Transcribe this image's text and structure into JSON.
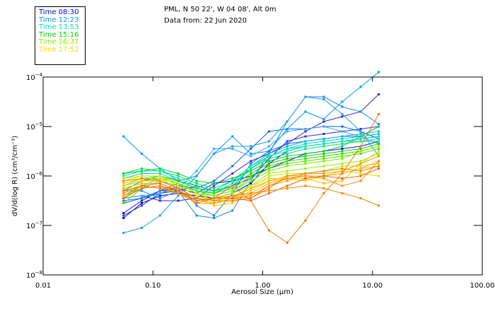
{
  "header": {
    "location": "PML, N 50 22', W 04 08', Alt 0m",
    "date": "Data from: 22 Jun 2020"
  },
  "legend": [
    {
      "label": "Time 08:30",
      "color": "#0000dd"
    },
    {
      "label": "Time 12:23",
      "color": "#0099ee"
    },
    {
      "label": "Time 13:53",
      "color": "#00ddbb"
    },
    {
      "label": "Time 15:16",
      "color": "#00cc00"
    },
    {
      "label": "Time 16:37",
      "color": "#88ee00"
    },
    {
      "label": "Time 17:52",
      "color": "#eedd00"
    }
  ],
  "chart_data": {
    "type": "line",
    "xlabel": "Aerosol Size (µm)",
    "ylabel": "dV/d(log R) (cm³/cm⁻³)",
    "xscale": "log",
    "yscale": "log",
    "xlim": [
      0.01,
      100
    ],
    "ylim": [
      1e-08,
      0.0001
    ],
    "x_ticks": [
      "0.01",
      "0.10",
      "1.00",
      "10.00",
      "100.00"
    ],
    "y_ticks": [
      {
        "base": "10",
        "exp": "-4"
      },
      {
        "base": "10",
        "exp": "-5"
      },
      {
        "base": "10",
        "exp": "-6"
      },
      {
        "base": "10",
        "exp": "-7"
      },
      {
        "base": "10",
        "exp": "-8"
      }
    ],
    "x": [
      0.054,
      0.079,
      0.116,
      0.17,
      0.25,
      0.36,
      0.53,
      0.78,
      1.14,
      1.67,
      2.45,
      3.6,
      5.3,
      7.8,
      11.4
    ],
    "series_log10": [
      {
        "color": "#0000cc",
        "values": [
          -6.85,
          -6.55,
          -6.4,
          -6.35,
          -6.4,
          -6.45,
          -6.35,
          -6.15,
          -5.75,
          -5.5,
          -5.4,
          -5.35,
          -5.3,
          -5.25,
          -5.2
        ]
      },
      {
        "color": "#1010dd",
        "values": [
          -6.75,
          -6.5,
          -6.3,
          -6.25,
          -6.35,
          -6.15,
          -6.1,
          -6.0,
          -5.85,
          -5.7,
          -5.55,
          -5.5,
          -5.45,
          -5.4,
          -5.3
        ]
      },
      {
        "color": "#2a2aee",
        "values": [
          -6.8,
          -6.6,
          -6.35,
          -6.3,
          -6.2,
          -6.3,
          -6.2,
          -6.05,
          -5.65,
          -5.3,
          -5.2,
          -5.15,
          -5.1,
          -5.05,
          -5.0
        ]
      },
      {
        "color": "#3322dd",
        "values": [
          -6.45,
          -6.4,
          -6.5,
          -6.5,
          -6.45,
          -6.2,
          -5.95,
          -5.7,
          -5.55,
          -5.35,
          -5.1,
          -4.9,
          -4.8,
          -4.7,
          -4.35
        ]
      },
      {
        "color": "#0066dd",
        "values": [
          -6.55,
          -6.45,
          -6.35,
          -6.2,
          -6.25,
          -6.1,
          -5.8,
          -5.45,
          -5.1,
          -5.05,
          -5.05,
          -5.0,
          -5.0,
          -5.1,
          -5.25
        ]
      },
      {
        "color": "#1188ee",
        "values": [
          -6.3,
          -6.3,
          -6.45,
          -6.3,
          -6.8,
          -6.85,
          -6.7,
          -6.1,
          -5.55,
          -4.9,
          -4.4,
          -4.4,
          -4.6,
          -4.7,
          -4.95
        ]
      },
      {
        "color": "#2299ee",
        "values": [
          -7.15,
          -7.05,
          -6.8,
          -6.4,
          -6.0,
          -5.55,
          -5.4,
          -5.4,
          -5.3,
          -4.9,
          -4.4,
          -4.45,
          -4.75,
          -5.1,
          -5.6
        ]
      },
      {
        "color": "#0099ee",
        "values": [
          -5.2,
          -5.55,
          -5.85,
          -6.1,
          -6.0,
          -5.55,
          -5.2,
          -5.55,
          -5.5,
          -5.05,
          -4.7,
          -4.85,
          -4.5,
          -4.2,
          -3.9
        ]
      },
      {
        "color": "#33aaee",
        "values": [
          -6.45,
          -6.4,
          -6.35,
          -6.25,
          -5.9,
          -5.45,
          -5.45,
          -5.6,
          -5.4,
          -5.1,
          -5.05,
          -5.0,
          -5.1,
          -5.2,
          -5.35
        ]
      },
      {
        "color": "#1177dd",
        "values": [
          -6.5,
          -6.45,
          -6.3,
          -6.15,
          -6.6,
          -6.8,
          -6.35,
          -5.75,
          -5.5,
          -5.35,
          -5.3,
          -5.25,
          -5.2,
          -5.2,
          -5.15
        ]
      },
      {
        "color": "#00bbdd",
        "values": [
          -6.15,
          -6.05,
          -6.0,
          -6.1,
          -6.25,
          -6.3,
          -6.1,
          -5.8,
          -5.55,
          -5.4,
          -5.3,
          -5.25,
          -5.2,
          -5.15,
          -5.1
        ]
      },
      {
        "color": "#00ccdd",
        "values": [
          -6.2,
          -6.1,
          -6.05,
          -6.15,
          -6.3,
          -6.35,
          -6.2,
          -5.85,
          -5.6,
          -5.45,
          -5.35,
          -5.3,
          -5.25,
          -5.2,
          -5.15
        ]
      },
      {
        "color": "#00ddbb",
        "values": [
          -6.05,
          -5.95,
          -5.95,
          -6.1,
          -6.25,
          -6.35,
          -6.15,
          -5.85,
          -5.6,
          -5.45,
          -5.4,
          -5.35,
          -5.3,
          -5.25,
          -5.2
        ]
      },
      {
        "color": "#00eeaa",
        "values": [
          -6.0,
          -5.9,
          -5.9,
          -6.05,
          -6.2,
          -6.3,
          -6.1,
          -5.8,
          -5.6,
          -5.5,
          -5.4,
          -5.35,
          -5.3,
          -5.3,
          -5.25
        ]
      },
      {
        "color": "#00dd77",
        "values": [
          -5.95,
          -5.85,
          -5.9,
          -6.0,
          -6.15,
          -6.25,
          -6.1,
          -5.85,
          -5.65,
          -5.55,
          -5.45,
          -5.4,
          -5.35,
          -5.3,
          -5.3
        ]
      },
      {
        "color": "#00cc33",
        "values": [
          -5.95,
          -5.9,
          -5.85,
          -5.95,
          -6.1,
          -6.15,
          -6.05,
          -5.9,
          -5.7,
          -5.6,
          -5.55,
          -5.5,
          -5.4,
          -5.2,
          -5.0
        ]
      },
      {
        "color": "#11cc00",
        "values": [
          -6.3,
          -6.1,
          -6.0,
          -6.1,
          -6.2,
          -6.3,
          -6.2,
          -5.95,
          -5.75,
          -5.65,
          -5.6,
          -5.55,
          -5.5,
          -5.45,
          -5.35
        ]
      },
      {
        "color": "#33dd00",
        "values": [
          -6.4,
          -6.2,
          -6.05,
          -6.15,
          -6.3,
          -6.35,
          -6.25,
          -6.0,
          -5.8,
          -5.7,
          -5.65,
          -5.6,
          -5.55,
          -5.5,
          -5.4
        ]
      },
      {
        "color": "#55dd00",
        "values": [
          -6.55,
          -6.25,
          -6.1,
          -6.2,
          -6.3,
          -6.4,
          -6.3,
          -6.05,
          -5.85,
          -5.75,
          -5.7,
          -5.65,
          -5.6,
          -5.55,
          -5.45
        ]
      },
      {
        "color": "#77ee00",
        "values": [
          -6.45,
          -6.2,
          -6.05,
          -6.15,
          -6.35,
          -6.4,
          -6.3,
          -6.1,
          -5.9,
          -5.8,
          -5.75,
          -5.7,
          -5.65,
          -5.5,
          -5.4
        ]
      },
      {
        "color": "#99ee00",
        "values": [
          -6.2,
          -6.05,
          -6.0,
          -6.15,
          -6.35,
          -6.45,
          -6.35,
          -6.2,
          -5.95,
          -5.9,
          -5.85,
          -5.8,
          -5.75,
          -5.7,
          -5.55
        ]
      },
      {
        "color": "#bbee00",
        "values": [
          -6.1,
          -6.0,
          -6.0,
          -6.15,
          -6.35,
          -6.5,
          -6.4,
          -6.25,
          -6.0,
          -5.95,
          -5.95,
          -5.9,
          -5.8,
          -5.8,
          -5.75
        ]
      },
      {
        "color": "#dddd00",
        "values": [
          -6.05,
          -6.0,
          -6.0,
          -6.2,
          -6.4,
          -6.5,
          -6.45,
          -6.2,
          -6.05,
          -6.05,
          -6.0,
          -6.0,
          -5.9,
          -5.95,
          -6.0
        ]
      },
      {
        "color": "#eecc00",
        "values": [
          -6.15,
          -6.05,
          -6.05,
          -6.25,
          -6.45,
          -6.55,
          -6.5,
          -6.3,
          -6.1,
          -6.05,
          -6.1,
          -6.0,
          -5.95,
          -5.85,
          -5.8
        ]
      },
      {
        "color": "#ffbb00",
        "values": [
          -6.2,
          -6.1,
          -6.1,
          -6.25,
          -6.45,
          -6.6,
          -6.55,
          -6.35,
          -6.15,
          -6.05,
          -6.05,
          -6.15,
          -6.1,
          -5.75,
          -5.5
        ]
      },
      {
        "color": "#ffaa00",
        "values": [
          -6.25,
          -6.15,
          -6.15,
          -6.3,
          -6.45,
          -6.55,
          -6.45,
          -6.25,
          -6.1,
          -6.0,
          -6.0,
          -6.0,
          -5.95,
          -5.85,
          -5.7
        ]
      },
      {
        "color": "#ff9900",
        "values": [
          -6.4,
          -6.25,
          -6.2,
          -6.35,
          -6.55,
          -6.55,
          -6.45,
          -6.4,
          -6.2,
          -6.1,
          -5.95,
          -5.95,
          -5.9,
          -5.75,
          -5.6
        ]
      },
      {
        "color": "#ff8800",
        "values": [
          -6.35,
          -6.2,
          -6.25,
          -6.35,
          -6.5,
          -6.45,
          -6.4,
          -6.45,
          -6.2,
          -6.05,
          -6.0,
          -6.05,
          -6.2,
          -6.1,
          -5.7
        ]
      },
      {
        "color": "#ff7700",
        "values": [
          -6.3,
          -6.2,
          -6.25,
          -6.3,
          -6.45,
          -6.5,
          -6.5,
          -6.45,
          -6.25,
          -6.0,
          -5.95,
          -5.9,
          -5.85,
          -5.9,
          -5.8
        ]
      },
      {
        "color": "#ee6600",
        "values": [
          -6.45,
          -6.25,
          -6.2,
          -6.3,
          -6.5,
          -6.45,
          -6.45,
          -6.5,
          -6.35,
          -6.2,
          -6.05,
          -6.0,
          -6.05,
          -6.0,
          -5.85
        ]
      },
      {
        "color": "#ee7700",
        "values": [
          -6.3,
          -6.2,
          -6.15,
          -6.3,
          -6.55,
          -6.45,
          -6.2,
          -6.5,
          -7.1,
          -7.35,
          -6.9,
          -6.35,
          -5.95,
          -5.4,
          -4.75
        ]
      },
      {
        "color": "#ee8800",
        "values": [
          -6.1,
          -6.05,
          -6.1,
          -6.25,
          -6.45,
          -6.5,
          -6.4,
          -6.35,
          -6.3,
          -6.25,
          -6.2,
          -6.25,
          -6.35,
          -6.45,
          -6.6
        ]
      }
    ]
  }
}
